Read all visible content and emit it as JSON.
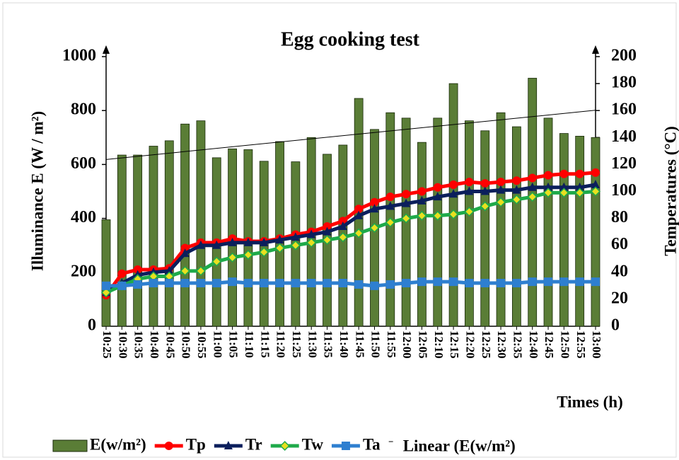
{
  "chart_data": {
    "type": "bar",
    "title": "Egg cooking test",
    "ylabel": "Illuminance E (W / m²)",
    "y2label": "Temperatures (°C)",
    "xlabel": "Times (h)",
    "categories": [
      "10:25",
      "10:30",
      "10:35",
      "10:40",
      "10:45",
      "10:50",
      "10:55",
      "11:00",
      "11:05",
      "11:10",
      "11:15",
      "11:20",
      "11:25",
      "11:30",
      "11:35",
      "11:40",
      "11:45",
      "11:50",
      "11:55",
      "12:00",
      "12:05",
      "12:10",
      "12:15",
      "12:20",
      "12:25",
      "12:30",
      "12:35",
      "12:40",
      "12:45",
      "12:50",
      "12:55",
      "13:00"
    ],
    "series": [
      {
        "name": "E(w/m²)",
        "type": "bar",
        "color": "#5a7d36",
        "values": [
          395,
          635,
          635,
          668,
          688,
          750,
          762,
          625,
          658,
          655,
          612,
          685,
          610,
          700,
          638,
          672,
          845,
          730,
          792,
          772,
          682,
          772,
          900,
          762,
          725,
          792,
          740,
          920,
          772,
          715,
          705,
          700
        ]
      },
      {
        "name": "Tp",
        "type": "line",
        "axis": "y2",
        "marker": "circle",
        "color": "#ff0000",
        "values": [
          23,
          39,
          42,
          42,
          43,
          58,
          62,
          62,
          65,
          63,
          63,
          65,
          68,
          70,
          74,
          78,
          87,
          92,
          96,
          98,
          100,
          103,
          105,
          107,
          106,
          107,
          108,
          110,
          112,
          113,
          113,
          114
        ]
      },
      {
        "name": "Tr",
        "type": "line",
        "axis": "y2",
        "marker": "triangle",
        "color": "#0b1f5c",
        "values": [
          25,
          32,
          38,
          40,
          41,
          54,
          60,
          60,
          62,
          62,
          62,
          64,
          66,
          68,
          70,
          74,
          82,
          87,
          89,
          91,
          93,
          96,
          98,
          100,
          100,
          101,
          101,
          103,
          103,
          103,
          103,
          105
        ]
      },
      {
        "name": "Tw",
        "type": "line",
        "axis": "y2",
        "marker": "diamond",
        "color": "#1faa4a",
        "values": [
          25,
          30,
          35,
          37,
          37,
          41,
          41,
          48,
          51,
          53,
          55,
          58,
          60,
          62,
          64,
          66,
          69,
          73,
          77,
          80,
          82,
          82,
          83,
          85,
          89,
          92,
          94,
          96,
          99,
          99,
          99,
          100
        ]
      },
      {
        "name": "Ta",
        "type": "line",
        "axis": "y2",
        "marker": "square",
        "color": "#2e7fd0",
        "values": [
          30,
          30,
          31,
          32,
          32,
          32,
          32,
          32,
          33,
          32,
          32,
          32,
          32,
          32,
          32,
          32,
          31,
          30,
          31,
          32,
          33,
          33,
          33,
          32,
          32,
          32,
          32,
          33,
          33,
          33,
          33,
          33
        ]
      }
    ],
    "trendline": {
      "name": "Linear (E(w/m²)",
      "series": 0
    },
    "ylim": [
      0,
      1000
    ],
    "yticks": [
      0,
      200,
      400,
      600,
      800,
      1000
    ],
    "y2lim": [
      0,
      200
    ],
    "y2ticks": [
      0,
      20,
      40,
      60,
      80,
      100,
      120,
      140,
      160,
      180,
      200
    ],
    "grid": false,
    "legend": "bottom"
  }
}
